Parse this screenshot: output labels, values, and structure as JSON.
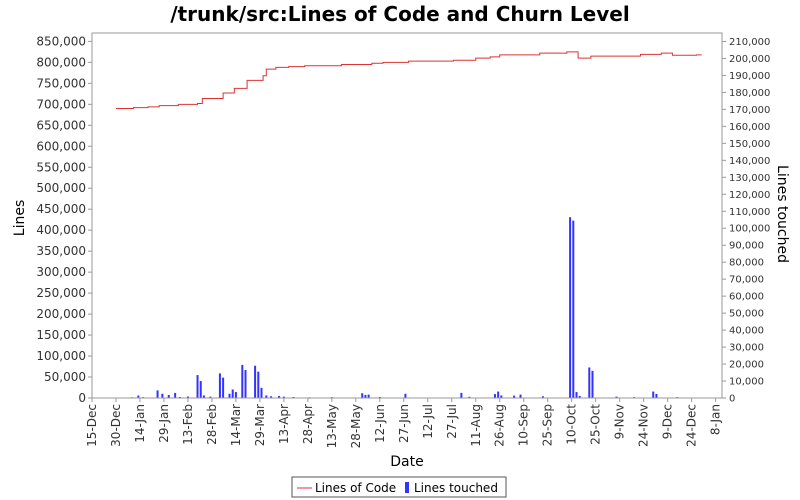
{
  "chart_data": {
    "type": "line",
    "title": "/trunk/src:Lines of Code and Churn Level",
    "xlabel": "Date",
    "ylabel": "Lines",
    "y2label": "Lines touched",
    "x_ticks": [
      "15-Dec",
      "30-Dec",
      "14-Jan",
      "29-Jan",
      "13-Feb",
      "28-Feb",
      "14-Mar",
      "29-Mar",
      "13-Apr",
      "28-Apr",
      "13-May",
      "28-May",
      "12-Jun",
      "27-Jun",
      "12-Jul",
      "27-Jul",
      "11-Aug",
      "26-Aug",
      "10-Sep",
      "25-Sep",
      "10-Oct",
      "25-Oct",
      "9-Nov",
      "24-Nov",
      "9-Dec",
      "24-Dec",
      "8-Jan"
    ],
    "y_ticks": [
      "0",
      "50,000",
      "100,000",
      "150,000",
      "200,000",
      "250,000",
      "300,000",
      "350,000",
      "400,000",
      "450,000",
      "500,000",
      "550,000",
      "600,000",
      "650,000",
      "700,000",
      "750,000",
      "800,000",
      "850,000"
    ],
    "y2_ticks": [
      "0",
      "10,000",
      "20,000",
      "30,000",
      "40,000",
      "50,000",
      "60,000",
      "70,000",
      "80,000",
      "90,000",
      "100,000",
      "110,000",
      "120,000",
      "130,000",
      "140,000",
      "150,000",
      "160,000",
      "170,000",
      "180,000",
      "190,000",
      "200,000",
      "210,000"
    ],
    "ylim": [
      0,
      870000
    ],
    "y2lim": [
      0,
      215000
    ],
    "x_range_days": [
      0,
      394
    ],
    "grid": false,
    "legend_position": "bottom",
    "series": [
      {
        "name": "Lines of Code",
        "axis": "left",
        "style": "step",
        "color": "#dd3333",
        "points": [
          [
            15,
            690000
          ],
          [
            26,
            692000
          ],
          [
            35,
            694000
          ],
          [
            42,
            697000
          ],
          [
            54,
            700000
          ],
          [
            66,
            702000
          ],
          [
            69,
            714000
          ],
          [
            82,
            727000
          ],
          [
            89,
            738000
          ],
          [
            97,
            757000
          ],
          [
            107,
            768000
          ],
          [
            109,
            784000
          ],
          [
            115,
            788000
          ],
          [
            123,
            790000
          ],
          [
            133,
            792000
          ],
          [
            156,
            795000
          ],
          [
            175,
            798000
          ],
          [
            182,
            800000
          ],
          [
            198,
            803000
          ],
          [
            226,
            805000
          ],
          [
            240,
            810000
          ],
          [
            249,
            813000
          ],
          [
            255,
            818000
          ],
          [
            280,
            822000
          ],
          [
            297,
            825000
          ],
          [
            304,
            810000
          ],
          [
            312,
            815000
          ],
          [
            343,
            819000
          ],
          [
            356,
            822000
          ],
          [
            363,
            817000
          ],
          [
            378,
            818000
          ],
          [
            381,
            819000
          ]
        ]
      },
      {
        "name": "Lines touched",
        "axis": "right",
        "style": "bar",
        "color": "#3333ff",
        "points": [
          [
            25,
            400
          ],
          [
            29,
            1500
          ],
          [
            32,
            500
          ],
          [
            41,
            4500
          ],
          [
            44,
            2500
          ],
          [
            48,
            1800
          ],
          [
            52,
            3000
          ],
          [
            55,
            600
          ],
          [
            60,
            900
          ],
          [
            66,
            13500
          ],
          [
            68,
            10000
          ],
          [
            70,
            1500
          ],
          [
            74,
            800
          ],
          [
            80,
            14500
          ],
          [
            82,
            12000
          ],
          [
            86,
            2500
          ],
          [
            88,
            5000
          ],
          [
            90,
            3500
          ],
          [
            94,
            19500
          ],
          [
            96,
            16500
          ],
          [
            102,
            19000
          ],
          [
            104,
            15500
          ],
          [
            106,
            6000
          ],
          [
            109,
            1500
          ],
          [
            112,
            1000
          ],
          [
            117,
            1200
          ],
          [
            120,
            800
          ],
          [
            126,
            600
          ],
          [
            136,
            400
          ],
          [
            150,
            500
          ],
          [
            169,
            2800
          ],
          [
            171,
            1800
          ],
          [
            173,
            2000
          ],
          [
            180,
            600
          ],
          [
            196,
            2500
          ],
          [
            231,
            3000
          ],
          [
            236,
            700
          ],
          [
            252,
            2300
          ],
          [
            254,
            3800
          ],
          [
            256,
            1500
          ],
          [
            264,
            1400
          ],
          [
            268,
            2000
          ],
          [
            282,
            1000
          ],
          [
            299,
            106500
          ],
          [
            301,
            104500
          ],
          [
            303,
            3500
          ],
          [
            305,
            1200
          ],
          [
            311,
            18000
          ],
          [
            313,
            16000
          ],
          [
            328,
            800
          ],
          [
            339,
            500
          ],
          [
            351,
            3800
          ],
          [
            353,
            2400
          ],
          [
            366,
            500
          ]
        ]
      }
    ]
  }
}
